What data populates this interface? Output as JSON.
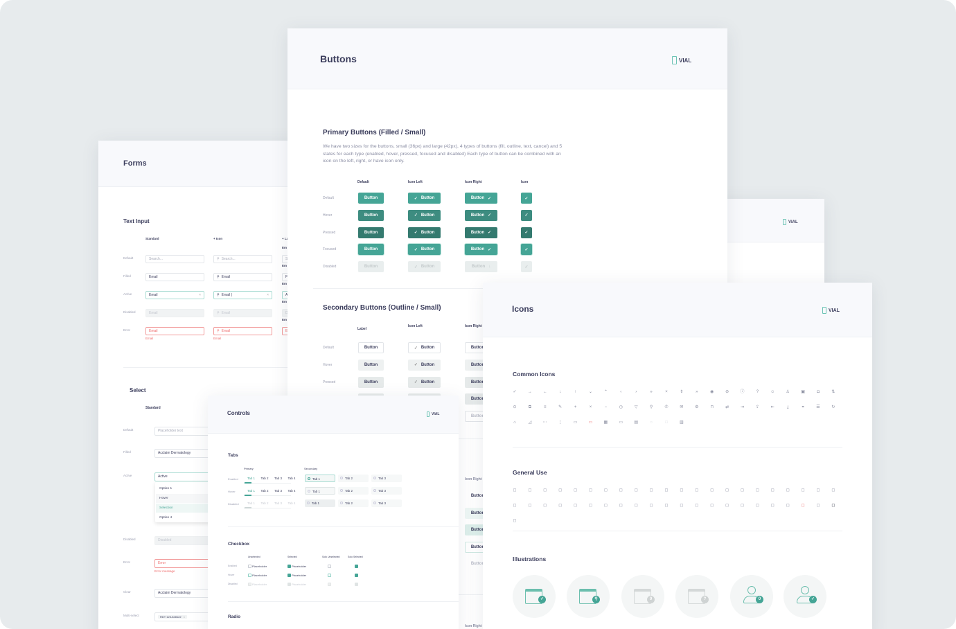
{
  "logo": "VIAL",
  "colors": {
    "primary": "#45a596",
    "hover": "#3d8c80",
    "pressed": "#347a6f",
    "disabled": "#e9eeee",
    "text": "#3b3d5c",
    "error": "#ee6b6b"
  },
  "forms": {
    "title": "Forms",
    "text_input": {
      "heading": "Text Input",
      "columns": [
        "Standard",
        "+ Icon",
        "+ La"
      ],
      "rows": [
        {
          "label": "Default",
          "value": "Search...",
          "state": "ph"
        },
        {
          "label": "Filled",
          "value": "Email",
          "state": "filled"
        },
        {
          "label": "Active",
          "value": "Email",
          "icon_value": "Email |",
          "state": "act"
        },
        {
          "label": "Disabled",
          "value": "Email",
          "state": "dis"
        },
        {
          "label": "Error",
          "value": "Email",
          "state": "err",
          "message": "Email"
        }
      ],
      "third_col_labels": [
        "Em",
        "Em",
        "Em",
        "Em",
        "Em"
      ],
      "third_col_values": [
        "S",
        "F",
        "A",
        "D",
        "E"
      ]
    },
    "select": {
      "heading": "Select",
      "column": "Standard",
      "rows": [
        {
          "label": "Default",
          "value": "Placeholder text",
          "state": "ph"
        },
        {
          "label": "Filled",
          "value": "Acclaim Dermatology",
          "state": "filled"
        },
        {
          "label": "Active",
          "value": "Active",
          "state": "act"
        },
        {
          "label": "Disabled",
          "value": "Disabled",
          "state": "dis"
        },
        {
          "label": "Error",
          "value": "Error",
          "state": "err",
          "message": "Error message"
        },
        {
          "label": "Clear",
          "value": "Acclaim Dermatology",
          "state": "filled"
        },
        {
          "label": "Multi-select",
          "value": "",
          "state": "filled",
          "chip": "RDT 123-828122"
        }
      ],
      "options": [
        "Option 1",
        "Hover",
        "Selection",
        "Option 4"
      ]
    }
  },
  "buttons": {
    "title": "Buttons",
    "button_label": "Button",
    "primary": {
      "heading": "Primary Buttons (Filled / Small)",
      "description": "We have two sizes for the buttons, small (36px) and large (42px), 4 types of buttons (fill, outline, text, cancel) and 5 states for each type (enabled, hover, pressed, focused and disabled) Each type of button can be combined with an icon on the left, right, or have icon only.",
      "columns": [
        "Default",
        "Icon Left",
        "Icon Right",
        "Icon"
      ],
      "states": [
        "Default",
        "Hover",
        "Pressed",
        "Focused",
        "Disabled"
      ]
    },
    "secondary": {
      "heading": "Secondary Buttons (Outline / Small)",
      "columns": [
        "Label",
        "Icon Left",
        "Icon Right"
      ],
      "states": [
        "Default",
        "Hover",
        "Pressed"
      ]
    },
    "tertiary_col": "Icon Right",
    "quaternary_col": "Icon Right"
  },
  "back_card": {},
  "controls": {
    "title": "Controls",
    "tabs": {
      "heading": "Tabs",
      "primary_label": "Primary",
      "secondary_label": "Secondary",
      "states": [
        "Enabled",
        "Hover",
        "Disabled"
      ],
      "primary_tabs": [
        "Tab 1",
        "Tab 2",
        "Tab 3",
        "Tab 4"
      ],
      "secondary_tabs": [
        "Tab 1",
        "Tab 2",
        "Tab 3"
      ]
    },
    "checkbox": {
      "heading": "Checkbox",
      "columns": [
        "Unselected",
        "Selected",
        "Solo Unselected",
        "Solo Selected"
      ],
      "states": [
        "Enabled",
        "Hover",
        "Disabled"
      ],
      "item_label": "Placeholder"
    },
    "radio": {
      "heading": "Radio"
    }
  },
  "icons": {
    "title": "Icons",
    "common": {
      "heading": "Common Icons",
      "items": [
        "check",
        "arrow-right",
        "arrow-left",
        "arrow-down",
        "arrow-up",
        "chevron-down",
        "chevron-up",
        "chevron-left",
        "chevron-right",
        "chevrons-right",
        "close-small",
        "sort",
        "chevrons-right-2",
        "eye",
        "eye-off",
        "info",
        "help",
        "user",
        "user-outline",
        "calendar",
        "camera",
        "swap-vertical",
        "alert-circle",
        "external-link",
        "menu",
        "edit",
        "plus",
        "close",
        "minus",
        "clock",
        "filter",
        "search",
        "phone",
        "mail",
        "settings",
        "lock",
        "transfer",
        "login",
        "upload",
        "logout",
        "download",
        "link",
        "text-align",
        "refresh",
        "home",
        "signal",
        "more-horizontal",
        "more-vertical",
        "comment",
        "comment-alert",
        "calendar-filled",
        "folder",
        "save",
        "loader",
        "square",
        "database"
      ]
    },
    "general": {
      "heading": "General Use",
      "items": [
        "server",
        "list",
        "circle",
        "shield",
        "no-image",
        "monitor",
        "image",
        "flag",
        "inbox",
        "move",
        "trash",
        "drop",
        "pin",
        "paperclip",
        "chain",
        "crop",
        "home-outline",
        "clock-outline",
        "rectangle",
        "code",
        "percent",
        "palette",
        "globe",
        "bookmark",
        "users",
        "user-plus",
        "user-check",
        "user-edit",
        "user-minus",
        "folder-plus",
        "folder-down",
        "file",
        "file-text",
        "folder-outline",
        "files",
        "redirect",
        "wifi",
        "video",
        "pen",
        "home-lock",
        "document",
        "file-error",
        "unlock",
        "lock-filled",
        "volume"
      ]
    },
    "illustrations": {
      "heading": "Illustrations",
      "items": [
        {
          "name": "calendar-check",
          "badge": "✓",
          "active": true
        },
        {
          "name": "calendar-search",
          "badge": "⚲",
          "active": true
        },
        {
          "name": "calendar-zero",
          "badge": "0",
          "active": false
        },
        {
          "name": "calendar-question",
          "badge": "?",
          "active": false
        },
        {
          "name": "user-zero",
          "badge": "0",
          "active": true
        },
        {
          "name": "user-check",
          "badge": "✓",
          "active": true
        }
      ]
    }
  }
}
